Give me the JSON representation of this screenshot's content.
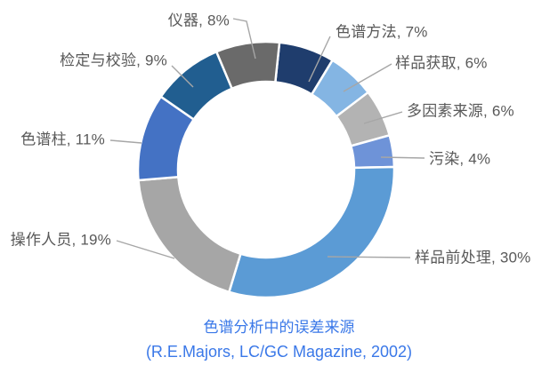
{
  "chart_data": {
    "type": "pie",
    "subtype": "donut",
    "title": "色谱分析中的误差来源",
    "subtitle": "(R.E.Majors, LC/GC Magazine, 2002)",
    "label_format": "{name}, {value}%",
    "direction": "clockwise",
    "first_slice_angle_deg": 6,
    "donut_hole_ratio": 0.69,
    "legend": "none",
    "series": [
      {
        "name": "色谱方法",
        "value": 7,
        "color": "#1F3D6D"
      },
      {
        "name": "样品获取",
        "value": 6,
        "color": "#84B5E3"
      },
      {
        "name": "多因素来源",
        "value": 6,
        "color": "#B3B3B3"
      },
      {
        "name": "污染",
        "value": 4,
        "color": "#6E93D8"
      },
      {
        "name": "样品前处理",
        "value": 30,
        "color": "#5B9BD5"
      },
      {
        "name": "操作人员",
        "value": 19,
        "color": "#A6A6A6"
      },
      {
        "name": "色谱柱",
        "value": 11,
        "color": "#4472C4"
      },
      {
        "name": "检定与校验",
        "value": 9,
        "color": "#215E90"
      },
      {
        "name": "仪器",
        "value": 8,
        "color": "#6A6A6A"
      }
    ],
    "colors": {
      "label_text": "#595959",
      "leader_line": "#A6A6A6",
      "title_text": "#3A78E8",
      "subtitle_text": "#3A78E8",
      "slice_gap": "#FFFFFF",
      "background": "#FFFFFF"
    }
  }
}
